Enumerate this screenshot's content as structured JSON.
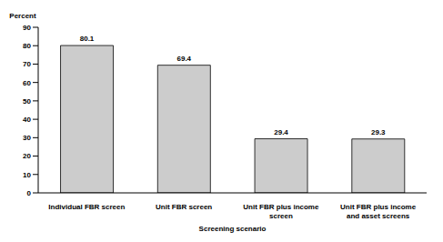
{
  "chart_data": {
    "type": "bar",
    "categories": [
      "Individual FBR screen",
      "Unit FBR screen",
      "Unit FBR plus income screen",
      "Unit FBR plus income and asset screens"
    ],
    "values": [
      80.1,
      69.4,
      29.4,
      29.3
    ],
    "color": "#cccccc",
    "ylim": [
      0,
      90
    ],
    "yticks": [
      0,
      10,
      20,
      30,
      40,
      50,
      60,
      70,
      80,
      90
    ],
    "ylabel": "Percent",
    "xlabel": "Screening scenario",
    "data_labels": true,
    "grid": false
  }
}
